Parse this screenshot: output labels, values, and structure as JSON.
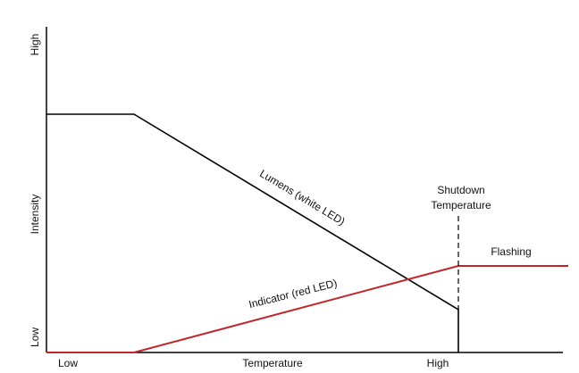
{
  "y_axis": {
    "high": "High",
    "low": "Low",
    "label": "Intensity"
  },
  "x_axis": {
    "low": "Low",
    "label": "Temperature",
    "high": "High"
  },
  "curves": {
    "white": "Lumens (white LED)",
    "red": "Indicator (red LED)"
  },
  "annotations": {
    "shutdown": [
      "Shutdown",
      "Temperature"
    ],
    "flashing": "Flashing"
  }
}
